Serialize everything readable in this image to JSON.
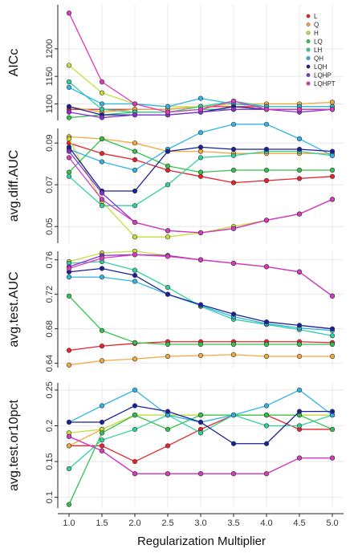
{
  "chart_data": {
    "type": "line",
    "x": [
      1.0,
      1.5,
      2.0,
      2.5,
      3.0,
      3.5,
      4.0,
      4.5,
      5.0
    ],
    "x_tick_labels": [
      "1.0",
      "1.5",
      "2.0",
      "2.5",
      "3.0",
      "3.5",
      "4.0",
      "4.5",
      "5.0"
    ],
    "xlabel": "Regularization Multiplier",
    "legend_position": "top-right",
    "series_styles": [
      {
        "name": "L",
        "color": "#e8212b"
      },
      {
        "name": "Q",
        "color": "#f2a93b"
      },
      {
        "name": "H",
        "color": "#c6de3a"
      },
      {
        "name": "LQ",
        "color": "#33c24d"
      },
      {
        "name": "LH",
        "color": "#30d0a0"
      },
      {
        "name": "QH",
        "color": "#2fb4e6"
      },
      {
        "name": "LQH",
        "color": "#1a1f9c"
      },
      {
        "name": "LQHP",
        "color": "#8a2fd6"
      },
      {
        "name": "LQHPT",
        "color": "#d93bbf"
      }
    ],
    "panels": [
      {
        "ylabel": "AICc",
        "ylim": [
          1070,
          1280
        ],
        "yticks": [
          1100,
          1150,
          1200
        ],
        "show_legend": true,
        "series": [
          {
            "name": "L",
            "values": [
              1090,
              1090,
              1090,
              1090,
              1095,
              1095,
              1095,
              1095,
              1095
            ]
          },
          {
            "name": "Q",
            "values": [
              1095,
              1085,
              1090,
              1090,
              1095,
              1100,
              1100,
              1100,
              1103
            ]
          },
          {
            "name": "H",
            "values": [
              1170,
              1120,
              1100,
              1095,
              1095,
              1100,
              1095,
              1095,
              1095
            ]
          },
          {
            "name": "LQ",
            "values": [
              1075,
              1080,
              1085,
              1085,
              1090,
              1090,
              1090,
              1090,
              1090
            ]
          },
          {
            "name": "LH",
            "values": [
              1140,
              1090,
              1085,
              1085,
              1095,
              1105,
              1095,
              1095,
              1095
            ]
          },
          {
            "name": "QH",
            "values": [
              1130,
              1100,
              1100,
              1095,
              1110,
              1100,
              1095,
              1095,
              1095
            ]
          },
          {
            "name": "LQH",
            "values": [
              1095,
              1080,
              1080,
              1080,
              1085,
              1095,
              1090,
              1090,
              1090
            ]
          },
          {
            "name": "LQHP",
            "values": [
              1085,
              1075,
              1080,
              1080,
              1085,
              1090,
              1090,
              1085,
              1090
            ]
          },
          {
            "name": "LQHPT",
            "values": [
              1265,
              1140,
              1100,
              1085,
              1090,
              1105,
              1090,
              1090,
              1090
            ]
          }
        ]
      },
      {
        "ylabel": "avg.diff.AUC",
        "ylim": [
          0.042,
          0.097
        ],
        "yticks": [
          0.05,
          0.07,
          0.09
        ],
        "show_legend": false,
        "series": [
          {
            "name": "L",
            "values": [
              0.09,
              0.085,
              0.082,
              0.077,
              0.074,
              0.071,
              0.072,
              0.073,
              0.074
            ]
          },
          {
            "name": "Q",
            "values": [
              0.093,
              0.092,
              0.09,
              0.086,
              0.086,
              0.085,
              0.085,
              0.085,
              0.085
            ]
          },
          {
            "name": "H",
            "values": [
              0.092,
              0.062,
              0.045,
              0.045,
              0.047,
              0.05,
              0.053,
              0.056,
              0.063
            ]
          },
          {
            "name": "LQ",
            "values": [
              0.076,
              0.092,
              0.086,
              0.079,
              0.076,
              0.077,
              0.077,
              0.077,
              0.077
            ]
          },
          {
            "name": "LH",
            "values": [
              0.074,
              0.06,
              0.06,
              0.07,
              0.083,
              0.084,
              0.086,
              0.086,
              0.084
            ]
          },
          {
            "name": "QH",
            "values": [
              0.087,
              0.081,
              0.077,
              0.087,
              0.095,
              0.099,
              0.099,
              0.092,
              0.084
            ]
          },
          {
            "name": "LQH",
            "values": [
              0.088,
              0.067,
              0.067,
              0.086,
              0.088,
              0.087,
              0.087,
              0.087,
              0.086
            ]
          },
          {
            "name": "LQHP",
            "values": [
              0.086,
              0.066,
              0.052,
              0.048,
              0.047,
              0.049,
              0.053,
              0.056,
              0.063
            ]
          },
          {
            "name": "LQHPT",
            "values": [
              0.083,
              0.063,
              0.052,
              0.048,
              0.047,
              0.049,
              0.053,
              0.056,
              0.063
            ]
          }
        ]
      },
      {
        "ylabel": "avg.test.AUC",
        "ylim": [
          0.635,
          0.77
        ],
        "yticks": [
          0.64,
          0.68,
          0.72,
          0.76
        ],
        "show_legend": false,
        "series": [
          {
            "name": "L",
            "values": [
              0.655,
              0.66,
              0.663,
              0.665,
              0.665,
              0.665,
              0.665,
              0.665,
              0.664
            ]
          },
          {
            "name": "Q",
            "values": [
              0.638,
              0.643,
              0.645,
              0.648,
              0.649,
              0.65,
              0.648,
              0.648,
              0.648
            ]
          },
          {
            "name": "H",
            "values": [
              0.758,
              0.768,
              0.77,
              0.765,
              0.76,
              0.756,
              0.752,
              0.746,
              0.718
            ]
          },
          {
            "name": "LQ",
            "values": [
              0.718,
              0.678,
              0.664,
              0.662,
              0.662,
              0.662,
              0.662,
              0.662,
              0.662
            ]
          },
          {
            "name": "LH",
            "values": [
              0.756,
              0.758,
              0.748,
              0.728,
              0.706,
              0.691,
              0.685,
              0.679,
              0.672
            ]
          },
          {
            "name": "QH",
            "values": [
              0.74,
              0.74,
              0.735,
              0.72,
              0.707,
              0.694,
              0.686,
              0.681,
              0.678
            ]
          },
          {
            "name": "LQH",
            "values": [
              0.746,
              0.75,
              0.742,
              0.72,
              0.708,
              0.697,
              0.688,
              0.684,
              0.68
            ]
          },
          {
            "name": "LQHP",
            "values": [
              0.752,
              0.765,
              0.766,
              0.765,
              0.76,
              0.756,
              0.752,
              0.746,
              0.718
            ]
          },
          {
            "name": "LQHPT",
            "values": [
              0.75,
              0.762,
              0.766,
              0.764,
              0.76,
              0.756,
              0.752,
              0.746,
              0.718
            ]
          }
        ]
      },
      {
        "ylabel": "avg.test.or10pct",
        "ylim": [
          0.085,
          0.26
        ],
        "yticks": [
          0.1,
          0.15,
          0.2,
          0.25
        ],
        "show_legend": false,
        "series": [
          {
            "name": "L",
            "values": [
              0.172,
              0.172,
              0.15,
              0.172,
              0.195,
              0.215,
              0.215,
              0.195,
              0.195
            ]
          },
          {
            "name": "Q",
            "values": [
              0.172,
              0.195,
              0.215,
              0.215,
              0.215,
              0.215,
              0.215,
              0.215,
              0.215
            ]
          },
          {
            "name": "H",
            "values": [
              0.19,
              0.195,
              0.215,
              0.215,
              0.215,
              0.215,
              0.215,
              0.215,
              0.215
            ]
          },
          {
            "name": "LQ",
            "values": [
              0.09,
              0.19,
              0.215,
              0.195,
              0.215,
              0.215,
              0.215,
              0.215,
              0.195
            ]
          },
          {
            "name": "LH",
            "values": [
              0.14,
              0.18,
              0.195,
              0.215,
              0.19,
              0.215,
              0.2,
              0.2,
              0.215
            ]
          },
          {
            "name": "QH",
            "values": [
              0.205,
              0.228,
              0.25,
              0.215,
              0.205,
              0.215,
              0.228,
              0.25,
              0.215
            ]
          },
          {
            "name": "LQH",
            "values": [
              0.205,
              0.205,
              0.228,
              0.22,
              0.205,
              0.175,
              0.175,
              0.22,
              0.22
            ]
          },
          {
            "name": "LQHP",
            "values": [
              0.185,
              0.165,
              0.133,
              0.133,
              0.133,
              0.133,
              0.133,
              0.155,
              0.155
            ]
          },
          {
            "name": "LQHPT",
            "values": [
              0.185,
              0.165,
              0.133,
              0.133,
              0.133,
              0.133,
              0.133,
              0.155,
              0.155
            ]
          }
        ]
      }
    ]
  }
}
